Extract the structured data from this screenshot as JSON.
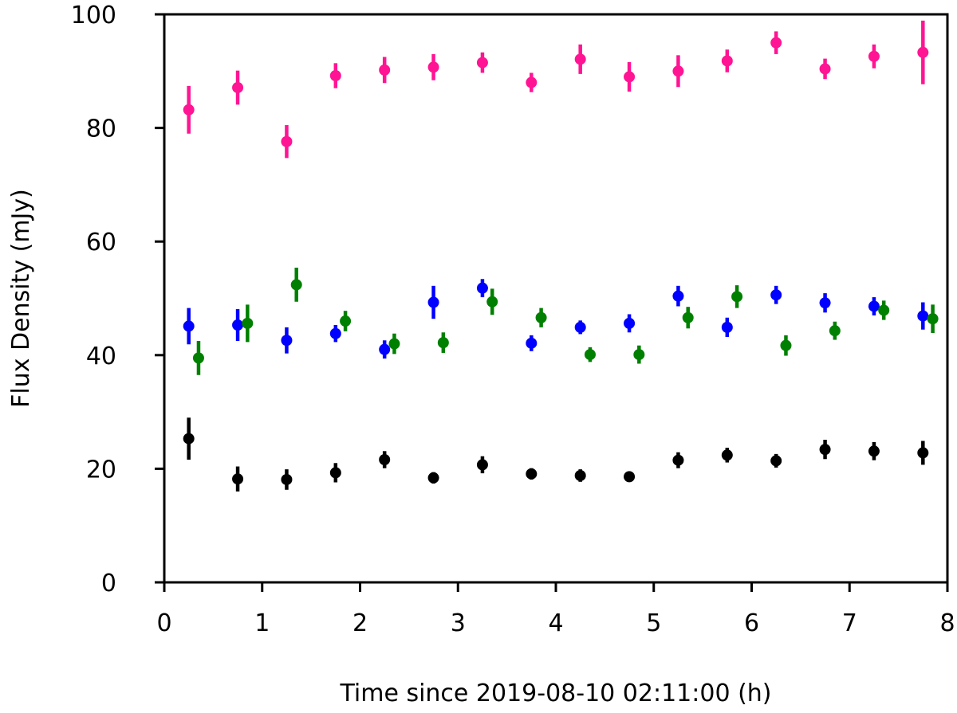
{
  "chart_data": {
    "type": "scatter",
    "title": "",
    "xlabel": "Time since 2019-08-10 02:11:00 (h)",
    "ylabel": "Flux Density (mJy)",
    "xlim": [
      0,
      8
    ],
    "ylim": [
      0,
      100
    ],
    "xticks": [
      "0",
      "1",
      "2",
      "3",
      "4",
      "5",
      "6",
      "7",
      "8"
    ],
    "yticks": [
      "0",
      "20",
      "40",
      "60",
      "80",
      "100"
    ],
    "grid": false,
    "legend": "none",
    "series": [
      {
        "color": "#ff1493",
        "points": [
          {
            "x": 0.25,
            "y": 83.2,
            "err": 4.2
          },
          {
            "x": 0.75,
            "y": 87.1,
            "err": 3.0
          },
          {
            "x": 1.25,
            "y": 77.6,
            "err": 2.9
          },
          {
            "x": 1.75,
            "y": 89.2,
            "err": 2.2
          },
          {
            "x": 2.25,
            "y": 90.2,
            "err": 2.3
          },
          {
            "x": 2.75,
            "y": 90.7,
            "err": 2.3
          },
          {
            "x": 3.25,
            "y": 91.5,
            "err": 1.8
          },
          {
            "x": 3.75,
            "y": 88.0,
            "err": 1.7
          },
          {
            "x": 4.25,
            "y": 92.1,
            "err": 2.6
          },
          {
            "x": 4.75,
            "y": 89.0,
            "err": 2.6
          },
          {
            "x": 5.25,
            "y": 90.0,
            "err": 2.8
          },
          {
            "x": 5.75,
            "y": 91.8,
            "err": 2.0
          },
          {
            "x": 6.25,
            "y": 95.0,
            "err": 2.0
          },
          {
            "x": 6.75,
            "y": 90.4,
            "err": 1.8
          },
          {
            "x": 7.25,
            "y": 92.6,
            "err": 2.1
          },
          {
            "x": 7.75,
            "y": 93.3,
            "err": 5.6
          }
        ]
      },
      {
        "color": "#0000ff",
        "points": [
          {
            "x": 0.25,
            "y": 45.1,
            "err": 3.2
          },
          {
            "x": 0.75,
            "y": 45.3,
            "err": 2.8
          },
          {
            "x": 1.25,
            "y": 42.6,
            "err": 2.3
          },
          {
            "x": 1.75,
            "y": 43.8,
            "err": 1.5
          },
          {
            "x": 2.25,
            "y": 41.0,
            "err": 1.6
          },
          {
            "x": 2.75,
            "y": 49.3,
            "err": 2.9
          },
          {
            "x": 3.25,
            "y": 51.8,
            "err": 1.6
          },
          {
            "x": 3.75,
            "y": 42.1,
            "err": 1.4
          },
          {
            "x": 4.25,
            "y": 44.9,
            "err": 1.2
          },
          {
            "x": 4.75,
            "y": 45.6,
            "err": 1.6
          },
          {
            "x": 5.25,
            "y": 50.4,
            "err": 1.8
          },
          {
            "x": 5.75,
            "y": 44.9,
            "err": 1.7
          },
          {
            "x": 6.25,
            "y": 50.6,
            "err": 1.6
          },
          {
            "x": 6.75,
            "y": 49.2,
            "err": 1.7
          },
          {
            "x": 7.25,
            "y": 48.6,
            "err": 1.6
          },
          {
            "x": 7.75,
            "y": 46.9,
            "err": 2.4
          }
        ]
      },
      {
        "color": "#008000",
        "points": [
          {
            "x": 0.35,
            "y": 39.5,
            "err": 3.0
          },
          {
            "x": 0.85,
            "y": 45.6,
            "err": 3.3
          },
          {
            "x": 1.35,
            "y": 52.4,
            "err": 3.0
          },
          {
            "x": 1.85,
            "y": 46.0,
            "err": 1.8
          },
          {
            "x": 2.35,
            "y": 42.0,
            "err": 1.8
          },
          {
            "x": 2.85,
            "y": 42.2,
            "err": 1.8
          },
          {
            "x": 3.35,
            "y": 49.4,
            "err": 2.3
          },
          {
            "x": 3.85,
            "y": 46.6,
            "err": 1.7
          },
          {
            "x": 4.35,
            "y": 40.1,
            "err": 1.3
          },
          {
            "x": 4.85,
            "y": 40.1,
            "err": 1.6
          },
          {
            "x": 5.35,
            "y": 46.6,
            "err": 1.9
          },
          {
            "x": 5.85,
            "y": 50.3,
            "err": 2.0
          },
          {
            "x": 6.35,
            "y": 41.7,
            "err": 1.8
          },
          {
            "x": 6.85,
            "y": 44.3,
            "err": 1.6
          },
          {
            "x": 7.35,
            "y": 47.9,
            "err": 1.7
          },
          {
            "x": 7.85,
            "y": 46.4,
            "err": 2.5
          }
        ]
      },
      {
        "color": "#000000",
        "points": [
          {
            "x": 0.25,
            "y": 25.3,
            "err": 3.7
          },
          {
            "x": 0.75,
            "y": 18.2,
            "err": 2.2
          },
          {
            "x": 1.25,
            "y": 18.1,
            "err": 1.8
          },
          {
            "x": 1.75,
            "y": 19.3,
            "err": 1.7
          },
          {
            "x": 2.25,
            "y": 21.6,
            "err": 1.5
          },
          {
            "x": 2.75,
            "y": 18.4,
            "err": 1.0
          },
          {
            "x": 3.25,
            "y": 20.7,
            "err": 1.5
          },
          {
            "x": 3.75,
            "y": 19.1,
            "err": 1.0
          },
          {
            "x": 4.25,
            "y": 18.8,
            "err": 1.1
          },
          {
            "x": 4.75,
            "y": 18.6,
            "err": 0.9
          },
          {
            "x": 5.25,
            "y": 21.5,
            "err": 1.4
          },
          {
            "x": 5.75,
            "y": 22.4,
            "err": 1.3
          },
          {
            "x": 6.25,
            "y": 21.4,
            "err": 1.2
          },
          {
            "x": 6.75,
            "y": 23.4,
            "err": 1.7
          },
          {
            "x": 7.25,
            "y": 23.1,
            "err": 1.6
          },
          {
            "x": 7.75,
            "y": 22.8,
            "err": 2.1
          }
        ]
      }
    ]
  }
}
